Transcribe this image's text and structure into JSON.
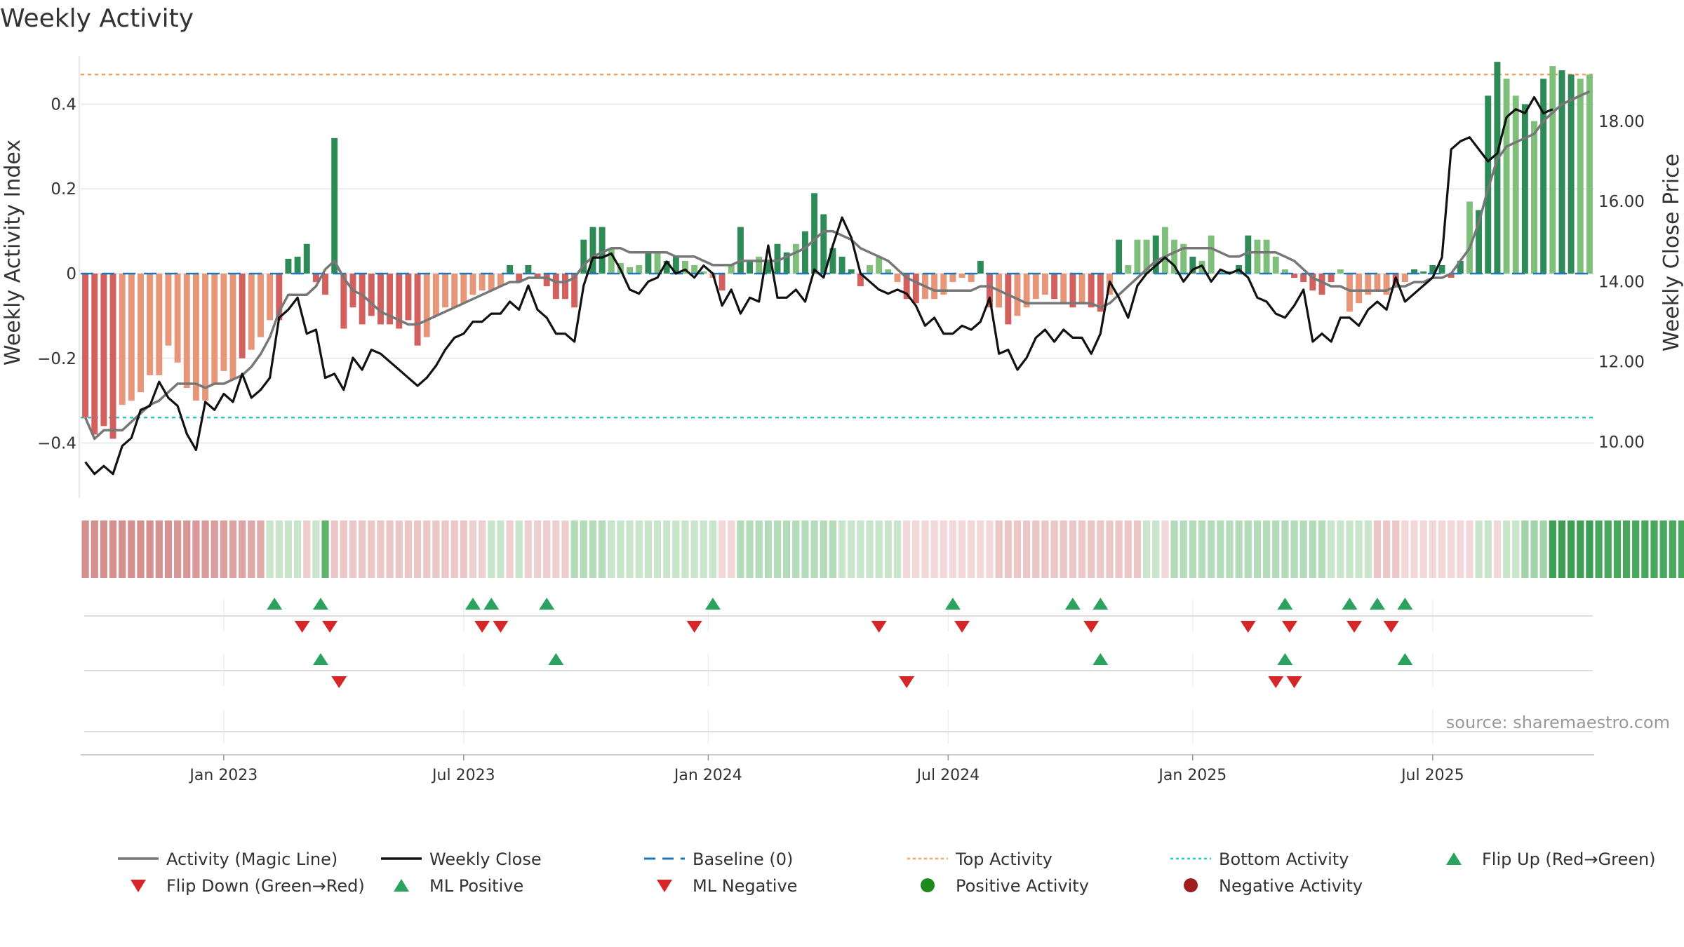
{
  "title": "Weekly Activity",
  "colors": {
    "pos_strong": "#2e8b57",
    "pos_light": "#7fbf7b",
    "neg_strong": "#d1605f",
    "neg_light": "#e8967a",
    "magic": "#777777",
    "close": "#111111",
    "baseline": "#1f77b4",
    "top": "#f4a261",
    "bottom": "#2ec4cf",
    "up": "#2ca25f",
    "down": "#d62728",
    "grid": "#e6e6e6"
  },
  "chart_data": {
    "type": "bar+line",
    "ylabel_left": "Weekly Activity Index",
    "ylabel_right": "Weekly Close Price",
    "ylim_left": [
      -0.53,
      0.53
    ],
    "ylim_right": [
      8.6,
      19.8
    ],
    "left_ticks": [
      {
        "v": 0.4,
        "label": "0.4"
      },
      {
        "v": 0.2,
        "label": "0.2"
      },
      {
        "v": 0,
        "label": "0"
      },
      {
        "v": -0.2,
        "label": "−0.2"
      },
      {
        "v": -0.4,
        "label": "−0.4"
      }
    ],
    "right_ticks": [
      {
        "v": 18,
        "label": "18.00"
      },
      {
        "v": 16,
        "label": "16.00"
      },
      {
        "v": 14,
        "label": "14.00"
      },
      {
        "v": 12,
        "label": "12.00"
      },
      {
        "v": 10,
        "label": "10.00"
      }
    ],
    "x_ticks": [
      {
        "week": 15,
        "label": "Jan 2023"
      },
      {
        "week": 41,
        "label": "Jul 2023"
      },
      {
        "week": 67.5,
        "label": "Jan 2024"
      },
      {
        "week": 93.5,
        "label": "Jul 2024"
      },
      {
        "week": 120,
        "label": "Jan 2025"
      },
      {
        "week": 146,
        "label": "Jul 2025"
      }
    ],
    "top_activity": 0.47,
    "bottom_activity": -0.34,
    "baseline": 0,
    "activity": [
      -0.34,
      -0.38,
      -0.36,
      -0.39,
      -0.31,
      -0.3,
      -0.28,
      -0.24,
      -0.24,
      -0.17,
      -0.21,
      -0.27,
      -0.3,
      -0.3,
      -0.26,
      -0.23,
      -0.25,
      -0.2,
      -0.18,
      -0.15,
      -0.11,
      -0.11,
      0.035,
      0.04,
      0.07,
      -0.02,
      -0.05,
      0.32,
      -0.13,
      -0.08,
      -0.12,
      -0.1,
      -0.12,
      -0.12,
      -0.13,
      -0.11,
      -0.17,
      -0.15,
      -0.1,
      -0.08,
      -0.08,
      -0.07,
      -0.05,
      -0.04,
      -0.04,
      -0.03,
      0.02,
      -0.02,
      0.02,
      -0.01,
      -0.03,
      -0.06,
      -0.06,
      -0.08,
      0.08,
      0.11,
      0.11,
      0.06,
      0.025,
      0.015,
      0.02,
      0.05,
      0.05,
      0.03,
      0.04,
      0.03,
      0.02,
      0.005,
      -0.01,
      -0.04,
      0.02,
      0.11,
      0.03,
      0.04,
      0.03,
      0.07,
      0.05,
      0.07,
      0.1,
      0.19,
      0.14,
      0.06,
      0.04,
      0.01,
      -0.03,
      0.02,
      0.04,
      0.01,
      -0.02,
      -0.06,
      -0.07,
      -0.06,
      -0.06,
      -0.05,
      -0.02,
      -0.01,
      -0.02,
      0.03,
      -0.08,
      -0.08,
      -0.12,
      -0.1,
      -0.08,
      -0.06,
      -0.05,
      -0.06,
      -0.07,
      -0.08,
      -0.07,
      -0.08,
      -0.09,
      -0.05,
      0.08,
      0.02,
      0.08,
      0.08,
      0.09,
      0.11,
      0.08,
      0.07,
      0.04,
      0.03,
      0.09,
      0.005,
      0.005,
      0.02,
      0.09,
      0.08,
      0.08,
      0.04,
      0.01,
      -0.01,
      -0.02,
      -0.04,
      -0.05,
      -0.02,
      0.01,
      -0.09,
      -0.07,
      -0.05,
      -0.04,
      -0.05,
      -0.03,
      -0.02,
      0.01,
      0.005,
      0.02,
      0.02,
      -0.01,
      0.03,
      0.17,
      0.15,
      0.42,
      0.5,
      0.46,
      0.42,
      0.4,
      0.36,
      0.46,
      0.49,
      0.48,
      0.47,
      0.46,
      0.47
    ],
    "activity_strong": [
      1,
      1,
      1,
      1,
      0,
      0,
      0,
      0,
      0,
      0,
      0,
      0,
      0,
      0,
      0,
      0,
      0,
      1,
      0,
      0,
      0,
      1,
      1,
      1,
      1,
      1,
      1,
      1,
      1,
      1,
      1,
      1,
      1,
      1,
      1,
      1,
      1,
      0,
      0,
      0,
      0,
      0,
      0,
      0,
      0,
      0,
      1,
      1,
      1,
      1,
      1,
      1,
      1,
      1,
      1,
      1,
      1,
      0,
      0,
      0,
      0,
      1,
      0,
      1,
      1,
      0,
      0,
      0,
      0,
      1,
      0,
      1,
      1,
      0,
      1,
      1,
      1,
      0,
      1,
      1,
      1,
      1,
      1,
      1,
      1,
      0,
      0,
      0,
      0,
      1,
      1,
      0,
      0,
      0,
      0,
      0,
      0,
      1,
      1,
      0,
      1,
      0,
      0,
      0,
      0,
      1,
      0,
      1,
      0,
      1,
      1,
      0,
      1,
      0,
      0,
      0,
      1,
      0,
      0,
      0,
      1,
      0,
      0,
      0,
      1,
      1,
      1,
      0,
      0,
      0,
      0,
      1,
      1,
      1,
      1,
      1,
      0,
      0,
      0,
      0,
      0,
      0,
      1,
      0,
      1,
      1,
      1,
      1,
      1,
      1,
      0,
      1,
      1,
      1,
      0,
      0,
      1,
      0,
      1,
      0,
      1,
      1
    ],
    "magic_line": [
      -0.34,
      -0.39,
      -0.37,
      -0.37,
      -0.37,
      -0.35,
      -0.33,
      -0.31,
      -0.3,
      -0.28,
      -0.26,
      -0.26,
      -0.26,
      -0.27,
      -0.26,
      -0.26,
      -0.25,
      -0.24,
      -0.22,
      -0.19,
      -0.15,
      -0.09,
      -0.05,
      -0.05,
      -0.05,
      -0.03,
      0.01,
      0.03,
      -0.01,
      -0.04,
      -0.05,
      -0.07,
      -0.09,
      -0.1,
      -0.11,
      -0.12,
      -0.12,
      -0.11,
      -0.1,
      -0.09,
      -0.08,
      -0.07,
      -0.06,
      -0.05,
      -0.04,
      -0.03,
      -0.02,
      -0.02,
      -0.01,
      -0.01,
      -0.01,
      -0.02,
      -0.02,
      -0.01,
      0.02,
      0.04,
      0.05,
      0.06,
      0.06,
      0.05,
      0.05,
      0.05,
      0.05,
      0.05,
      0.04,
      0.04,
      0.04,
      0.03,
      0.02,
      0.02,
      0.02,
      0.03,
      0.03,
      0.03,
      0.03,
      0.03,
      0.04,
      0.05,
      0.06,
      0.08,
      0.1,
      0.1,
      0.09,
      0.08,
      0.06,
      0.05,
      0.04,
      0.03,
      0.01,
      -0.01,
      -0.02,
      -0.03,
      -0.04,
      -0.04,
      -0.04,
      -0.04,
      -0.04,
      -0.03,
      -0.03,
      -0.04,
      -0.05,
      -0.06,
      -0.07,
      -0.07,
      -0.07,
      -0.07,
      -0.07,
      -0.07,
      -0.07,
      -0.07,
      -0.08,
      -0.07,
      -0.05,
      -0.03,
      -0.01,
      0.01,
      0.03,
      0.04,
      0.05,
      0.06,
      0.06,
      0.06,
      0.06,
      0.05,
      0.04,
      0.04,
      0.05,
      0.05,
      0.05,
      0.05,
      0.04,
      0.03,
      0.01,
      -0.01,
      -0.02,
      -0.03,
      -0.03,
      -0.04,
      -0.04,
      -0.04,
      -0.04,
      -0.04,
      -0.03,
      -0.03,
      -0.02,
      -0.02,
      -0.01,
      -0.01,
      0.0,
      0.03,
      0.06,
      0.12,
      0.2,
      0.27,
      0.3,
      0.31,
      0.32,
      0.33,
      0.36,
      0.38,
      0.4,
      0.41,
      0.42,
      0.43
    ],
    "weekly_close": [
      9.5,
      9.2,
      9.4,
      9.2,
      9.9,
      10.1,
      10.8,
      10.9,
      11.5,
      11.1,
      10.9,
      10.2,
      9.8,
      11.0,
      10.8,
      11.2,
      11.0,
      11.7,
      11.1,
      11.3,
      11.6,
      13.1,
      13.3,
      13.6,
      12.7,
      12.8,
      11.6,
      11.7,
      11.3,
      12.1,
      11.8,
      12.3,
      12.2,
      12.0,
      11.8,
      11.6,
      11.4,
      11.6,
      11.9,
      12.3,
      12.6,
      12.7,
      13.0,
      13.0,
      13.2,
      13.2,
      13.5,
      13.3,
      13.9,
      13.3,
      13.1,
      12.7,
      12.7,
      12.5,
      13.9,
      14.6,
      14.6,
      14.7,
      14.3,
      13.8,
      13.7,
      14.0,
      14.1,
      14.5,
      14.2,
      14.3,
      14.1,
      14.4,
      14.2,
      13.4,
      13.8,
      13.2,
      13.6,
      13.5,
      14.9,
      13.6,
      13.6,
      13.8,
      13.5,
      14.3,
      14.1,
      14.9,
      15.6,
      15.1,
      14.2,
      14.0,
      13.8,
      13.7,
      13.8,
      13.7,
      13.4,
      12.9,
      13.1,
      12.7,
      12.7,
      12.9,
      12.8,
      13.0,
      13.6,
      12.2,
      12.3,
      11.8,
      12.1,
      12.6,
      12.8,
      12.5,
      12.8,
      12.6,
      12.6,
      12.2,
      12.7,
      14.0,
      13.6,
      13.1,
      13.9,
      14.2,
      14.4,
      14.6,
      14.4,
      14.0,
      14.3,
      14.4,
      14.0,
      14.3,
      14.2,
      14.3,
      14.1,
      13.6,
      13.5,
      13.2,
      13.1,
      13.4,
      13.8,
      12.5,
      12.7,
      12.5,
      13.1,
      13.1,
      12.9,
      13.3,
      13.5,
      13.3,
      14.1,
      13.5,
      13.7,
      13.9,
      14.1,
      14.6,
      17.3,
      17.5,
      17.6,
      17.3,
      17.0,
      17.2,
      18.1,
      18.3,
      18.2,
      18.6,
      18.2,
      18.3
    ]
  },
  "strip": {
    "shades": [
      "#d48f8f",
      "#d48f8f",
      "#d48f8f",
      "#d48f8f",
      "#d48f8f",
      "#d48f8f",
      "#d48f8f",
      "#d48f8f",
      "#d69393",
      "#d69393",
      "#d89797",
      "#d89797",
      "#d99999",
      "#da9b9b",
      "#db9e9e",
      "#dca0a0",
      "#dda3a3",
      "#dea5a5",
      "#dfa8a8",
      "#e0abab",
      "#c9e6cd",
      "#c9e6cd",
      "#c9e6cd",
      "#c9e6cd",
      "#edcfcf",
      "#c9e6cd",
      "#5fb36d",
      "#ebc7c7",
      "#ebc7c7",
      "#ebc7c7",
      "#ebc7c7",
      "#ebc7c7",
      "#ebc7c7",
      "#ebc7c7",
      "#ebc7c7",
      "#ebc7c7",
      "#ebc7c7",
      "#ebc7c7",
      "#ebc7c7",
      "#ebc7c7",
      "#ebc7c7",
      "#ebc7c7",
      "#edcfcf",
      "#edcfcf",
      "#c9e6cd",
      "#c9e6cd",
      "#edcfcf",
      "#c9e6cd",
      "#edcfcf",
      "#edcfcf",
      "#edcfcf",
      "#edcfcf",
      "#edcfcf",
      "#b5dcba",
      "#b5dcba",
      "#b5dcba",
      "#b5dcba",
      "#c9e6cd",
      "#c9e6cd",
      "#c9e6cd",
      "#c9e6cd",
      "#c9e6cd",
      "#c9e6cd",
      "#c9e6cd",
      "#c9e6cd",
      "#c9e6cd",
      "#c9e6cd",
      "#c9e6cd",
      "#c9e6cd",
      "#f2d8d8",
      "#f2d8d8",
      "#b5dcba",
      "#b5dcba",
      "#b5dcba",
      "#b5dcba",
      "#b5dcba",
      "#b5dcba",
      "#b5dcba",
      "#b5dcba",
      "#b5dcba",
      "#b5dcba",
      "#b5dcba",
      "#c9e6cd",
      "#c9e6cd",
      "#c9e6cd",
      "#c9e6cd",
      "#c9e6cd",
      "#c9e6cd",
      "#c9e6cd",
      "#f2d8d8",
      "#f2d8d8",
      "#f2d8d8",
      "#f2d8d8",
      "#f2d8d8",
      "#f2d8d8",
      "#f2d8d8",
      "#f2d8d8",
      "#f2d8d8",
      "#f2d8d8",
      "#ebc7c7",
      "#ebc7c7",
      "#ebc7c7",
      "#ebc7c7",
      "#ebc7c7",
      "#ebc7c7",
      "#ebc7c7",
      "#ebc7c7",
      "#ebc7c7",
      "#ebc7c7",
      "#ebc7c7",
      "#ebc7c7",
      "#ebc7c7",
      "#ebc7c7",
      "#ebc7c7",
      "#ebc7c7",
      "#c9e6cd",
      "#c9e6cd",
      "#f2d8d8",
      "#b5dcba",
      "#b5dcba",
      "#b5dcba",
      "#b5dcba",
      "#b5dcba",
      "#b5dcba",
      "#b5dcba",
      "#b5dcba",
      "#b5dcba",
      "#b5dcba",
      "#b5dcba",
      "#b5dcba",
      "#b5dcba",
      "#b5dcba",
      "#b5dcba",
      "#b5dcba",
      "#b5dcba",
      "#c9e6cd",
      "#c9e6cd",
      "#c9e6cd",
      "#c9e6cd",
      "#c9e6cd",
      "#ebc7c7",
      "#ebc7c7",
      "#ebc7c7",
      "#f2d8d8",
      "#f2d8d8",
      "#f2d8d8",
      "#f2d8d8",
      "#f2d8d8",
      "#f2d8d8",
      "#f2d8d8",
      "#f2d8d8",
      "#c9e6cd",
      "#c9e6cd",
      "#f2d8d8",
      "#c9e6cd",
      "#c9e6cd",
      "#a3d3aa",
      "#a3d3aa",
      "#a3d3aa",
      "#3e9e54",
      "#3e9e54",
      "#3e9e54",
      "#3e9e54",
      "#3e9e54",
      "#4aa85e",
      "#4aa85e",
      "#4aa85e",
      "#4aa85e",
      "#4aa85e",
      "#4aa85e",
      "#4aa85e",
      "#4aa85e",
      "#4aa85e",
      "#4aa85e"
    ]
  },
  "markers": {
    "flip_up": [
      20.5,
      25.5,
      42,
      44,
      50,
      68,
      94,
      107,
      110,
      130,
      137,
      140,
      143
    ],
    "flip_down": [
      23.5,
      26.5,
      43,
      45,
      66,
      86,
      95,
      109,
      126,
      130.5,
      137.5,
      141.5
    ],
    "ml_positive": [
      25.5,
      51,
      110,
      130,
      143
    ],
    "ml_negative": [
      27.5,
      89,
      129,
      131
    ]
  },
  "source": "source: sharemaestro.com",
  "legend": [
    {
      "key": "magic",
      "label": "Activity (Magic Line)",
      "symbol": "line"
    },
    {
      "key": "close",
      "label": "Weekly Close",
      "symbol": "line"
    },
    {
      "key": "baseline",
      "label": "Baseline (0)",
      "symbol": "dash"
    },
    {
      "key": "top",
      "label": "Top Activity",
      "symbol": "dot-line"
    },
    {
      "key": "bottom",
      "label": "Bottom Activity",
      "symbol": "dot-line"
    },
    {
      "key": "up",
      "label": "Flip Up (Red→Green)",
      "symbol": "tri-up"
    },
    {
      "key": "down",
      "label": "Flip Down (Green→Red)",
      "symbol": "tri-down"
    },
    {
      "key": "up",
      "label": "ML Positive",
      "symbol": "tri-up"
    },
    {
      "key": "down",
      "label": "ML Negative",
      "symbol": "tri-down"
    },
    {
      "key": "pos_circle",
      "label": "Positive Activity",
      "symbol": "circle",
      "color": "#1e8a1e"
    },
    {
      "key": "neg_circle",
      "label": "Negative Activity",
      "symbol": "circle",
      "color": "#a01e1e"
    }
  ]
}
